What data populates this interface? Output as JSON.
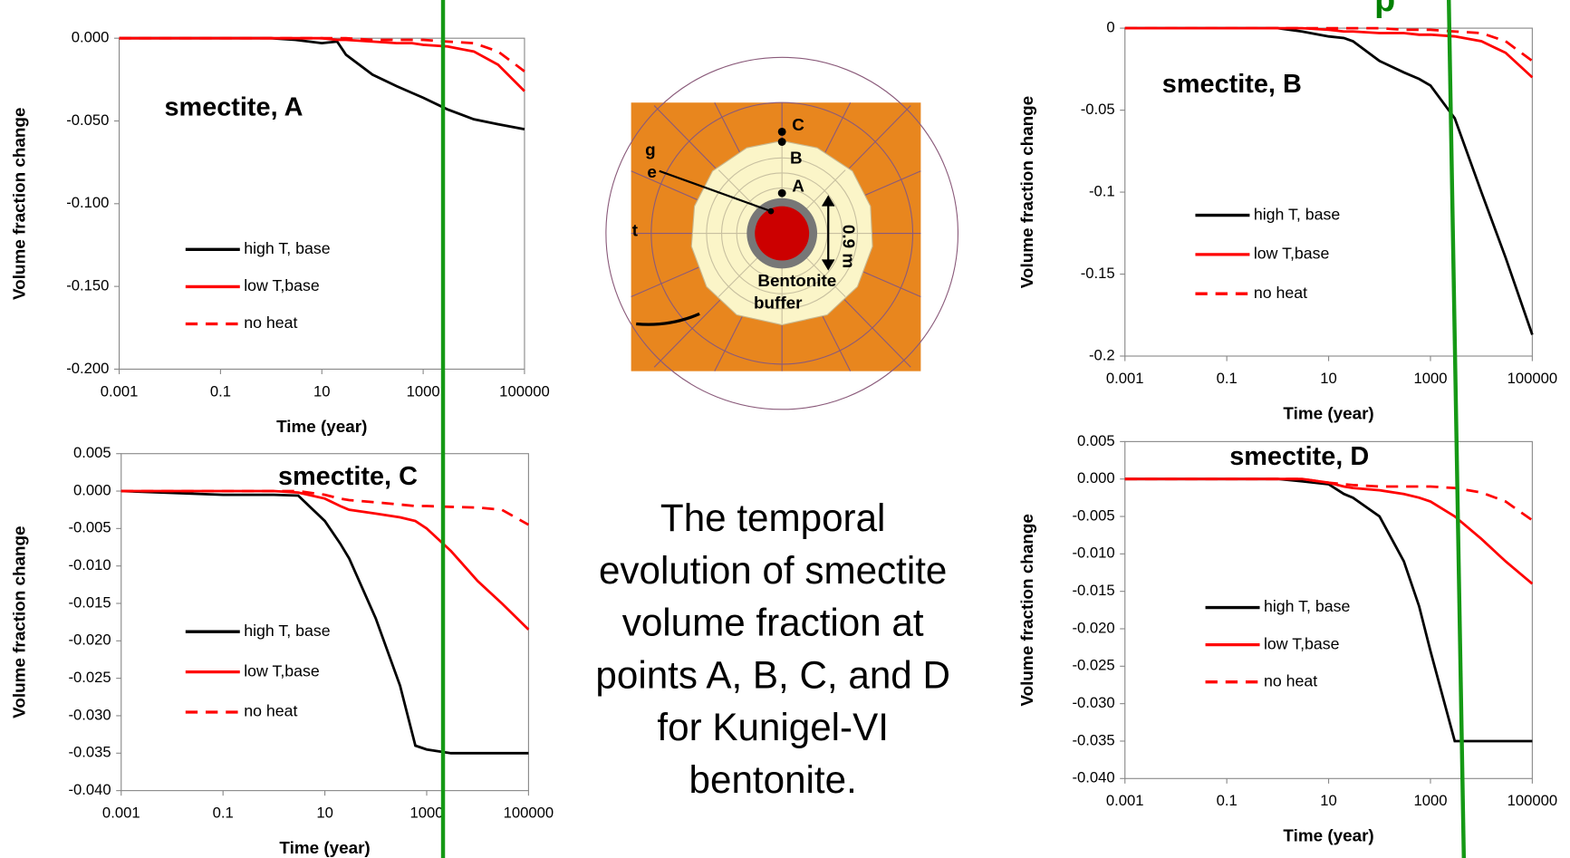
{
  "chart_data": [
    {
      "type": "line",
      "title": "smectite, A",
      "x_label": "Time (year)",
      "y_label": "Volume fraction change",
      "xscale": "log",
      "xlim": [
        0.001,
        100000
      ],
      "xticks": [
        0.001,
        0.1,
        10,
        1000,
        100000
      ],
      "ylim": [
        -0.2,
        0
      ],
      "yticks": [
        {
          "value": 0,
          "label": "0.000"
        },
        {
          "value": -0.05,
          "label": "-0.050"
        },
        {
          "value": -0.1,
          "label": "-0.100"
        },
        {
          "value": -0.15,
          "label": "-0.150"
        },
        {
          "value": -0.2,
          "label": "-0.200"
        }
      ],
      "x": [
        0.001,
        0.1,
        1,
        3,
        10,
        20,
        30,
        100,
        300,
        600,
        1000,
        3000,
        10000,
        30000,
        100000
      ],
      "series": [
        {
          "name": "high T, base",
          "color": "#000000",
          "linestyle": "solid",
          "values": [
            0,
            0,
            0,
            -0.001,
            -0.003,
            -0.002,
            -0.01,
            -0.022,
            -0.029,
            -0.033,
            -0.036,
            -0.043,
            -0.049,
            -0.052,
            -0.055
          ]
        },
        {
          "name": "low T,base",
          "color": "#ff0000",
          "linestyle": "solid",
          "values": [
            0,
            0,
            0,
            0,
            0,
            -0.001,
            -0.001,
            -0.002,
            -0.003,
            -0.003,
            -0.004,
            -0.005,
            -0.008,
            -0.016,
            -0.032
          ]
        },
        {
          "name": "no heat",
          "color": "#ff0000",
          "linestyle": "dashed",
          "values": [
            0,
            0,
            0,
            0,
            0,
            0,
            0,
            -0.001,
            -0.001,
            -0.001,
            -0.001,
            -0.002,
            -0.003,
            -0.008,
            -0.02
          ]
        }
      ]
    },
    {
      "type": "line",
      "title": "smectite, B",
      "x_label": "Time (year)",
      "y_label": "Volume fraction change",
      "xscale": "log",
      "xlim": [
        0.001,
        100000
      ],
      "xticks": [
        0.001,
        0.1,
        10,
        1000,
        100000
      ],
      "ylim": [
        -0.2,
        0
      ],
      "yticks": [
        0,
        -0.05,
        -0.1,
        -0.15,
        -0.2
      ],
      "x": [
        0.001,
        0.1,
        1,
        3,
        10,
        20,
        30,
        100,
        300,
        600,
        1000,
        3000,
        10000,
        30000,
        100000
      ],
      "series": [
        {
          "name": "high T, base",
          "color": "#000000",
          "linestyle": "solid",
          "values": [
            0,
            0,
            0,
            -0.002,
            -0.005,
            -0.006,
            -0.008,
            -0.02,
            -0.027,
            -0.031,
            -0.035,
            -0.055,
            -0.1,
            -0.14,
            -0.187
          ]
        },
        {
          "name": "low T,base",
          "color": "#ff0000",
          "linestyle": "solid",
          "values": [
            0,
            0,
            0,
            0,
            -0.001,
            -0.002,
            -0.002,
            -0.003,
            -0.003,
            -0.004,
            -0.004,
            -0.005,
            -0.008,
            -0.015,
            -0.03
          ]
        },
        {
          "name": "no heat",
          "color": "#ff0000",
          "linestyle": "dashed",
          "values": [
            0,
            0,
            0,
            0,
            0,
            0,
            0,
            0,
            -0.001,
            -0.001,
            -0.001,
            -0.002,
            -0.003,
            -0.008,
            -0.02
          ]
        }
      ]
    },
    {
      "type": "line",
      "title": "smectite, C",
      "x_label": "Time (year)",
      "y_label": "Volume fraction change",
      "xscale": "log",
      "xlim": [
        0.001,
        100000
      ],
      "xticks": [
        0.001,
        0.1,
        10,
        1000,
        100000
      ],
      "ylim": [
        -0.04,
        0.005
      ],
      "yticks": [
        0.005,
        {
          "value": 0,
          "label": "0.000"
        },
        -0.005,
        {
          "value": -0.01,
          "label": "-0.010"
        },
        -0.015,
        {
          "value": -0.02,
          "label": "-0.020"
        },
        -0.025,
        {
          "value": -0.03,
          "label": "-0.030"
        },
        -0.035,
        {
          "value": -0.04,
          "label": "-0.040"
        }
      ],
      "x": [
        0.001,
        0.1,
        1,
        3,
        10,
        20,
        30,
        100,
        300,
        600,
        1000,
        3000,
        10000,
        30000,
        100000
      ],
      "series": [
        {
          "name": "high T, base",
          "color": "#000000",
          "linestyle": "solid",
          "values": [
            0,
            -0.0005,
            -0.0005,
            -0.0006,
            -0.004,
            -0.007,
            -0.009,
            -0.017,
            -0.026,
            -0.034,
            -0.0345,
            -0.035,
            -0.035,
            -0.035,
            -0.035
          ]
        },
        {
          "name": "low T,base",
          "color": "#ff0000",
          "linestyle": "solid",
          "values": [
            0,
            0,
            0,
            -0.0002,
            -0.001,
            -0.002,
            -0.0025,
            -0.003,
            -0.0035,
            -0.004,
            -0.005,
            -0.008,
            -0.012,
            -0.015,
            -0.0185
          ]
        },
        {
          "name": "no heat",
          "color": "#ff0000",
          "linestyle": "dashed",
          "values": [
            0,
            0,
            0,
            0,
            -0.0005,
            -0.001,
            -0.0012,
            -0.0015,
            -0.0018,
            -0.002,
            -0.002,
            -0.0021,
            -0.0022,
            -0.0025,
            -0.0045
          ]
        }
      ]
    },
    {
      "type": "line",
      "title": "smectite, D",
      "x_label": "Time (year)",
      "y_label": "Volume fraction change",
      "xscale": "log",
      "xlim": [
        0.001,
        100000
      ],
      "xticks": [
        0.001,
        0.1,
        10,
        1000,
        100000
      ],
      "ylim": [
        -0.04,
        0.005
      ],
      "yticks": [
        0.005,
        {
          "value": 0,
          "label": "0.000"
        },
        -0.005,
        {
          "value": -0.01,
          "label": "-0.010"
        },
        -0.015,
        {
          "value": -0.02,
          "label": "-0.020"
        },
        -0.025,
        {
          "value": -0.03,
          "label": "-0.030"
        },
        -0.035,
        {
          "value": -0.04,
          "label": "-0.040"
        }
      ],
      "x": [
        0.001,
        0.1,
        1,
        3,
        10,
        20,
        30,
        100,
        300,
        600,
        1000,
        3000,
        10000,
        30000,
        100000
      ],
      "series": [
        {
          "name": "high T, base",
          "color": "#000000",
          "linestyle": "solid",
          "values": [
            0,
            0,
            0,
            -0.0003,
            -0.0007,
            -0.002,
            -0.0025,
            -0.005,
            -0.011,
            -0.017,
            -0.023,
            -0.035,
            -0.035,
            -0.035,
            -0.035
          ]
        },
        {
          "name": "low T,base",
          "color": "#ff0000",
          "linestyle": "solid",
          "values": [
            0,
            0,
            0,
            0,
            -0.0005,
            -0.001,
            -0.0012,
            -0.0015,
            -0.002,
            -0.0025,
            -0.003,
            -0.005,
            -0.008,
            -0.011,
            -0.014
          ]
        },
        {
          "name": "no heat",
          "color": "#ff0000",
          "linestyle": "dashed",
          "values": [
            0,
            0,
            0,
            0,
            -0.0005,
            -0.0007,
            -0.0008,
            -0.001,
            -0.001,
            -0.001,
            -0.001,
            -0.0012,
            -0.0018,
            -0.003,
            -0.0055
          ]
        }
      ]
    }
  ],
  "caption": [
    "The temporal",
    "evolution of smectite",
    "volume fraction at",
    "points A, B, C, and D",
    "for Kunigel-VI",
    "bentonite."
  ],
  "header_fragment": "p",
  "diagram": {
    "points": [
      "C",
      "B",
      "A"
    ],
    "distance": "0.9 m",
    "buffer_label": [
      "Bentonite",
      "buffer"
    ],
    "cut_labels": [
      "g",
      "e",
      "t"
    ]
  }
}
